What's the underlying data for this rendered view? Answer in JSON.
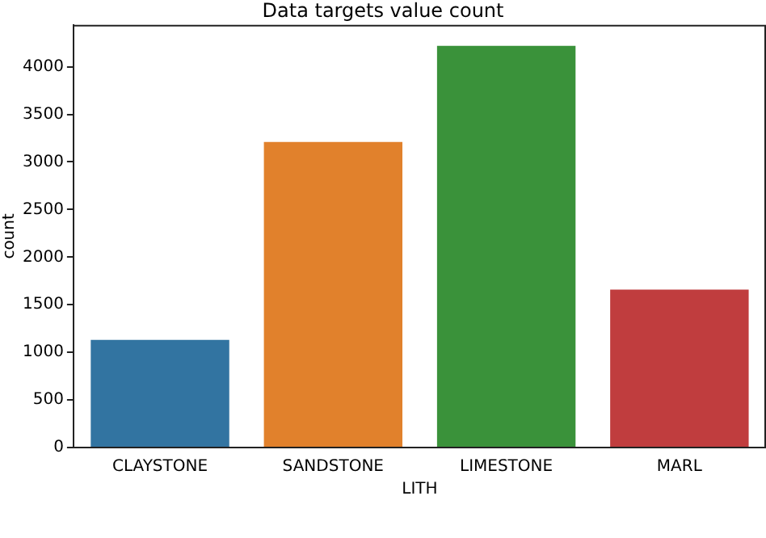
{
  "chart_data": {
    "type": "bar",
    "title": "Data targets value count",
    "xlabel": "LITH",
    "ylabel": "count",
    "categories": [
      "CLAYSTONE",
      "SANDSTONE",
      "LIMESTONE",
      "MARL"
    ],
    "values": [
      1130,
      3210,
      4220,
      1660
    ],
    "colors": [
      "#3274a1",
      "#e1812c",
      "#3a923a",
      "#c03d3e"
    ],
    "ylim": [
      0,
      4440
    ],
    "yticks": [
      0,
      500,
      1000,
      1500,
      2000,
      2500,
      3000,
      3500,
      4000
    ],
    "grid": false,
    "legend": false
  }
}
